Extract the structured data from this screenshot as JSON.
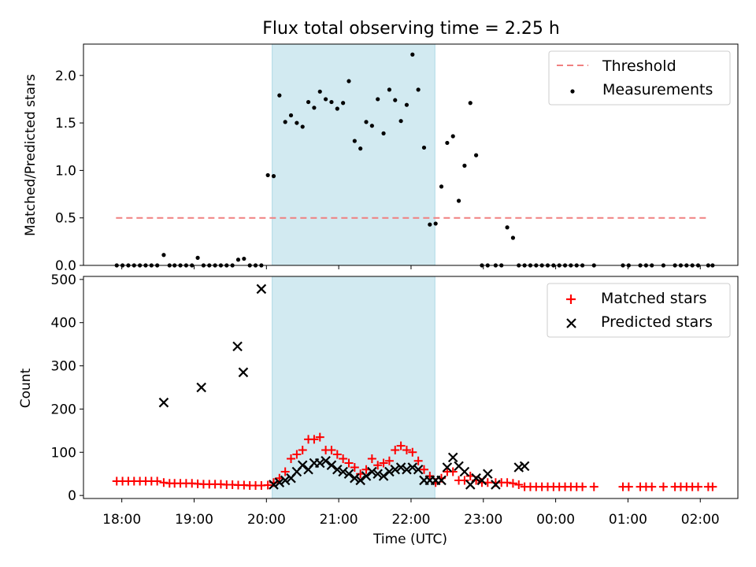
{
  "chart_data": {
    "title": "Flux total observing time = 2.25 h",
    "shaded_interval": {
      "start_hours": 20.08,
      "end_hours": 22.33,
      "color": "#add8e6"
    },
    "panels": [
      {
        "type": "scatter",
        "ylabel": "Matched/Predicted stars",
        "ylim": [
          0,
          2.33
        ],
        "xlim": [
          17.47,
          26.52
        ],
        "yticks": [
          0.0,
          0.5,
          1.0,
          1.5,
          2.0
        ],
        "ytick_labels": [
          "0.0",
          "0.5",
          "1.0",
          "1.5",
          "2.0"
        ],
        "legend": {
          "placement": "upper right",
          "entries": [
            "Threshold",
            "Measurements"
          ]
        },
        "threshold": {
          "name": "Threshold",
          "value": 0.5,
          "x_range": [
            17.92,
            26.13
          ],
          "color": "#f08080"
        },
        "series": [
          {
            "name": "Measurements",
            "marker": "dot",
            "color": "#000000",
            "x": [
              17.93,
              18.01,
              18.09,
              18.17,
              18.25,
              18.33,
              18.41,
              18.49,
              18.58,
              18.66,
              18.73,
              18.81,
              18.89,
              18.97,
              19.05,
              19.13,
              19.21,
              19.29,
              19.37,
              19.45,
              19.53,
              19.61,
              19.69,
              19.77,
              19.85,
              19.93,
              20.02,
              20.1,
              20.18,
              20.26,
              20.34,
              20.42,
              20.5,
              20.58,
              20.66,
              20.74,
              20.82,
              20.9,
              20.98,
              21.06,
              21.14,
              21.22,
              21.3,
              21.38,
              21.46,
              21.54,
              21.62,
              21.7,
              21.78,
              21.86,
              21.94,
              22.02,
              22.1,
              22.18,
              22.26,
              22.34,
              22.42,
              22.5,
              22.58,
              22.66,
              22.74,
              22.82,
              22.9,
              22.98,
              23.06,
              23.17,
              23.25,
              23.33,
              23.41,
              23.49,
              23.57,
              23.65,
              23.73,
              23.81,
              23.89,
              23.97,
              24.05,
              24.13,
              24.21,
              24.29,
              24.37,
              24.53,
              24.93,
              25.01,
              25.17,
              25.25,
              25.33,
              25.49,
              25.65,
              25.73,
              25.81,
              25.89,
              25.97,
              26.11,
              26.17
            ],
            "y": [
              0,
              0,
              0,
              0,
              0,
              0,
              0,
              0,
              0.11,
              0,
              0,
              0,
              0,
              0,
              0.08,
              0,
              0,
              0,
              0,
              0,
              0,
              0.06,
              0.07,
              0,
              0,
              0,
              0.95,
              0.94,
              1.79,
              1.51,
              1.58,
              1.5,
              1.46,
              1.72,
              1.66,
              1.83,
              1.75,
              1.72,
              1.65,
              1.71,
              1.94,
              1.31,
              1.23,
              1.51,
              1.47,
              1.75,
              1.39,
              1.85,
              1.74,
              1.52,
              1.69,
              2.22,
              1.85,
              1.24,
              0.43,
              0.44,
              0.83,
              1.29,
              1.36,
              0.68,
              1.05,
              1.71,
              1.16,
              0,
              0,
              0,
              0,
              0.4,
              0.29,
              0,
              0,
              0,
              0,
              0,
              0,
              0,
              0,
              0,
              0,
              0,
              0,
              0,
              0,
              0,
              0,
              0,
              0,
              0,
              0,
              0,
              0,
              0,
              0,
              0,
              0
            ]
          }
        ]
      },
      {
        "type": "scatter",
        "ylabel": "Count",
        "xlabel": "Time (UTC)",
        "ylim": [
          -7,
          507
        ],
        "xlim": [
          17.47,
          26.52
        ],
        "yticks": [
          0,
          100,
          200,
          300,
          400,
          500
        ],
        "ytick_labels": [
          "0",
          "100",
          "200",
          "300",
          "400",
          "500"
        ],
        "xticks": [
          18,
          19,
          20,
          21,
          22,
          23,
          24,
          25,
          26
        ],
        "xtick_labels": [
          "18:00",
          "19:00",
          "20:00",
          "21:00",
          "22:00",
          "23:00",
          "00:00",
          "01:00",
          "02:00"
        ],
        "legend": {
          "placement": "upper right",
          "entries": [
            "Matched stars",
            "Predicted stars"
          ]
        },
        "series": [
          {
            "name": "Matched stars",
            "marker": "plus",
            "color": "#ff0000",
            "x": [
              17.93,
              18.01,
              18.09,
              18.17,
              18.25,
              18.33,
              18.41,
              18.49,
              18.58,
              18.66,
              18.73,
              18.81,
              18.89,
              18.97,
              19.05,
              19.13,
              19.21,
              19.29,
              19.37,
              19.45,
              19.53,
              19.61,
              19.69,
              19.77,
              19.85,
              19.93,
              20.02,
              20.1,
              20.18,
              20.26,
              20.34,
              20.42,
              20.5,
              20.58,
              20.66,
              20.74,
              20.82,
              20.9,
              20.98,
              21.06,
              21.14,
              21.22,
              21.3,
              21.38,
              21.46,
              21.54,
              21.62,
              21.7,
              21.78,
              21.86,
              21.94,
              22.02,
              22.1,
              22.18,
              22.26,
              22.34,
              22.42,
              22.5,
              22.58,
              22.66,
              22.74,
              22.82,
              22.9,
              22.98,
              23.06,
              23.17,
              23.25,
              23.33,
              23.41,
              23.49,
              23.57,
              23.65,
              23.73,
              23.81,
              23.89,
              23.97,
              24.05,
              24.13,
              24.21,
              24.29,
              24.37,
              24.53,
              24.93,
              25.01,
              25.17,
              25.25,
              25.33,
              25.49,
              25.65,
              25.73,
              25.81,
              25.89,
              25.97,
              26.11,
              26.17
            ],
            "y": [
              33,
              33,
              33,
              33,
              33,
              33,
              33,
              33,
              30,
              28,
              28,
              28,
              28,
              28,
              27,
              26,
              26,
              26,
              26,
              25,
              25,
              24,
              24,
              23,
              23,
              23,
              24,
              30,
              40,
              55,
              85,
              95,
              105,
              130,
              130,
              135,
              105,
              105,
              95,
              85,
              75,
              65,
              50,
              60,
              85,
              70,
              75,
              80,
              105,
              115,
              105,
              100,
              80,
              60,
              45,
              30,
              40,
              55,
              55,
              35,
              35,
              45,
              35,
              30,
              30,
              30,
              30,
              30,
              28,
              25,
              20,
              20,
              20,
              20,
              20,
              20,
              20,
              20,
              20,
              20,
              20,
              20,
              20,
              20,
              20,
              20,
              20,
              20,
              20,
              20,
              20,
              20,
              20,
              20,
              20
            ]
          },
          {
            "name": "Predicted stars",
            "marker": "x",
            "color": "#000000",
            "x": [
              18.58,
              19.1,
              19.6,
              19.68,
              19.93,
              20.1,
              20.18,
              20.26,
              20.34,
              20.42,
              20.5,
              20.58,
              20.66,
              20.74,
              20.82,
              20.9,
              20.98,
              21.06,
              21.14,
              21.22,
              21.3,
              21.38,
              21.46,
              21.54,
              21.62,
              21.7,
              21.78,
              21.86,
              21.94,
              22.02,
              22.1,
              22.18,
              22.26,
              22.34,
              22.42,
              22.5,
              22.58,
              22.66,
              22.74,
              22.82,
              22.9,
              22.98,
              23.06,
              23.17,
              23.49,
              23.57
            ],
            "y": [
              215,
              250,
              345,
              285,
              478,
              25,
              30,
              35,
              40,
              55,
              70,
              60,
              75,
              75,
              80,
              70,
              60,
              55,
              50,
              40,
              35,
              45,
              55,
              50,
              45,
              55,
              60,
              65,
              60,
              65,
              60,
              35,
              35,
              35,
              35,
              65,
              88,
              68,
              55,
              25,
              40,
              35,
              50,
              25,
              65,
              68
            ]
          }
        ]
      }
    ]
  }
}
